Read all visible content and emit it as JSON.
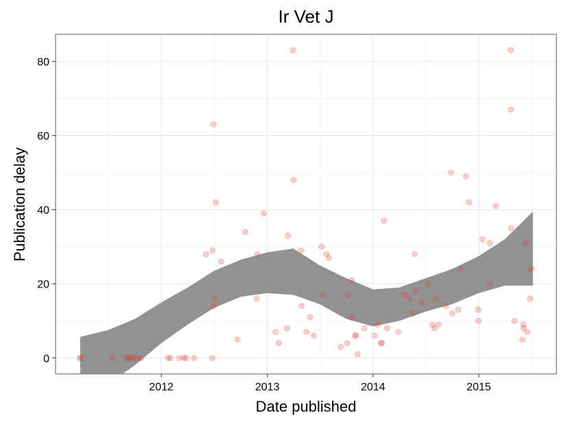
{
  "chart_data": {
    "type": "scatter",
    "title": "Ir Vet J",
    "xlabel": "Date published",
    "ylabel": "Publication delay",
    "x_scale": "date",
    "xlim": [
      "2011-01-01",
      "2015-09-26"
    ],
    "ylim": [
      -4.3,
      87.3
    ],
    "x_ticks": [
      {
        "value": "2012-01-01",
        "label": "2012"
      },
      {
        "value": "2013-01-01",
        "label": "2013"
      },
      {
        "value": "2014-01-01",
        "label": "2014"
      },
      {
        "value": "2015-01-01",
        "label": "2015"
      }
    ],
    "y_ticks": [
      0,
      20,
      40,
      60,
      80
    ],
    "grid": true,
    "point_color": "#e8382d",
    "band_color": "#8c8c8c",
    "series": [
      {
        "points": [
          {
            "x": "2011-03-27",
            "y": 0
          },
          {
            "x": "2011-03-29",
            "y": 0
          },
          {
            "x": "2011-07-17",
            "y": 0
          },
          {
            "x": "2011-09-05",
            "y": 0
          },
          {
            "x": "2011-09-10",
            "y": 0
          },
          {
            "x": "2011-09-17",
            "y": 0
          },
          {
            "x": "2011-09-26",
            "y": 0
          },
          {
            "x": "2011-10-10",
            "y": 0
          },
          {
            "x": "2011-10-23",
            "y": 0
          },
          {
            "x": "2012-01-24",
            "y": 0
          },
          {
            "x": "2012-02-01",
            "y": 0
          },
          {
            "x": "2012-03-03",
            "y": 0
          },
          {
            "x": "2012-03-19",
            "y": 0
          },
          {
            "x": "2012-03-26",
            "y": 0
          },
          {
            "x": "2012-04-23",
            "y": 0
          },
          {
            "x": "2012-06-03",
            "y": 28
          },
          {
            "x": "2012-06-25",
            "y": 0
          },
          {
            "x": "2012-06-26",
            "y": 29
          },
          {
            "x": "2012-06-29",
            "y": 63
          },
          {
            "x": "2012-06-30",
            "y": 14
          },
          {
            "x": "2012-07-05",
            "y": 16
          },
          {
            "x": "2012-07-07",
            "y": 42
          },
          {
            "x": "2012-07-25",
            "y": 26
          },
          {
            "x": "2012-09-20",
            "y": 5
          },
          {
            "x": "2012-10-17",
            "y": 34
          },
          {
            "x": "2012-11-25",
            "y": 16
          },
          {
            "x": "2012-11-28",
            "y": 28
          },
          {
            "x": "2012-12-20",
            "y": 39
          },
          {
            "x": "2013-01-30",
            "y": 7
          },
          {
            "x": "2013-02-10",
            "y": 4
          },
          {
            "x": "2013-03-10",
            "y": 8
          },
          {
            "x": "2013-03-13",
            "y": 33
          },
          {
            "x": "2013-03-31",
            "y": 83
          },
          {
            "x": "2013-04-02",
            "y": 48
          },
          {
            "x": "2013-04-28",
            "y": 29
          },
          {
            "x": "2013-04-30",
            "y": 14
          },
          {
            "x": "2013-05-16",
            "y": 7
          },
          {
            "x": "2013-05-29",
            "y": 11
          },
          {
            "x": "2013-06-10",
            "y": 6
          },
          {
            "x": "2013-07-07",
            "y": 30
          },
          {
            "x": "2013-07-10",
            "y": 17
          },
          {
            "x": "2013-07-24",
            "y": 28
          },
          {
            "x": "2013-08-02",
            "y": 27
          },
          {
            "x": "2013-09-11",
            "y": 3
          },
          {
            "x": "2013-10-04",
            "y": 4
          },
          {
            "x": "2013-10-05",
            "y": 17
          },
          {
            "x": "2013-10-19",
            "y": 21
          },
          {
            "x": "2013-10-21",
            "y": 11
          },
          {
            "x": "2013-10-31",
            "y": 6
          },
          {
            "x": "2013-11-03",
            "y": 6
          },
          {
            "x": "2013-11-09",
            "y": 1
          },
          {
            "x": "2013-12-02",
            "y": 8
          },
          {
            "x": "2014-01-06",
            "y": 6
          },
          {
            "x": "2014-01-17",
            "y": 9
          },
          {
            "x": "2014-01-29",
            "y": 4
          },
          {
            "x": "2014-01-31",
            "y": 4
          },
          {
            "x": "2014-02-07",
            "y": 37
          },
          {
            "x": "2014-02-19",
            "y": 8
          },
          {
            "x": "2014-03-29",
            "y": 7
          },
          {
            "x": "2014-04-20",
            "y": 17
          },
          {
            "x": "2014-05-07",
            "y": 16
          },
          {
            "x": "2014-05-18",
            "y": 12
          },
          {
            "x": "2014-05-25",
            "y": 28
          },
          {
            "x": "2014-05-28",
            "y": 18
          },
          {
            "x": "2014-06-18",
            "y": 15
          },
          {
            "x": "2014-07-10",
            "y": 20
          },
          {
            "x": "2014-07-25",
            "y": 9
          },
          {
            "x": "2014-08-01",
            "y": 8
          },
          {
            "x": "2014-08-06",
            "y": 16
          },
          {
            "x": "2014-08-15",
            "y": 9
          },
          {
            "x": "2014-09-10",
            "y": 14
          },
          {
            "x": "2014-09-27",
            "y": 50
          },
          {
            "x": "2014-10-02",
            "y": 12
          },
          {
            "x": "2014-10-22",
            "y": 13
          },
          {
            "x": "2014-10-30",
            "y": 24
          },
          {
            "x": "2014-11-18",
            "y": 49
          },
          {
            "x": "2014-11-29",
            "y": 42
          },
          {
            "x": "2014-12-30",
            "y": 13
          },
          {
            "x": "2014-12-31",
            "y": 10
          },
          {
            "x": "2015-01-14",
            "y": 32
          },
          {
            "x": "2015-02-08",
            "y": 31
          },
          {
            "x": "2015-02-09",
            "y": 20
          },
          {
            "x": "2015-03-01",
            "y": 41
          },
          {
            "x": "2015-04-21",
            "y": 83
          },
          {
            "x": "2015-04-22",
            "y": 67
          },
          {
            "x": "2015-04-23",
            "y": 35
          },
          {
            "x": "2015-05-04",
            "y": 10
          },
          {
            "x": "2015-06-01",
            "y": 5
          },
          {
            "x": "2015-06-04",
            "y": 9
          },
          {
            "x": "2015-06-05",
            "y": 8
          },
          {
            "x": "2015-06-13",
            "y": 31
          },
          {
            "x": "2015-06-17",
            "y": 7
          },
          {
            "x": "2015-06-27",
            "y": 16
          },
          {
            "x": "2015-07-02",
            "y": 24
          }
        ]
      }
    ],
    "smooth_band": [
      {
        "x": "2011-03-27",
        "lower": -16,
        "upper": 5.7
      },
      {
        "x": "2011-07-01",
        "lower": -7,
        "upper": 7.5
      },
      {
        "x": "2011-10-01",
        "lower": -2,
        "upper": 10.5
      },
      {
        "x": "2012-01-01",
        "lower": 4,
        "upper": 15
      },
      {
        "x": "2012-04-01",
        "lower": 9,
        "upper": 19
      },
      {
        "x": "2012-07-01",
        "lower": 13.5,
        "upper": 23.5
      },
      {
        "x": "2012-10-01",
        "lower": 16.5,
        "upper": 26.5
      },
      {
        "x": "2013-01-01",
        "lower": 17.5,
        "upper": 28.5
      },
      {
        "x": "2013-04-01",
        "lower": 17,
        "upper": 29.5
      },
      {
        "x": "2013-07-01",
        "lower": 14.5,
        "upper": 25
      },
      {
        "x": "2013-10-01",
        "lower": 10.5,
        "upper": 21.5
      },
      {
        "x": "2014-01-01",
        "lower": 8.5,
        "upper": 18.5
      },
      {
        "x": "2014-04-01",
        "lower": 10,
        "upper": 19
      },
      {
        "x": "2014-07-01",
        "lower": 12.5,
        "upper": 21.5
      },
      {
        "x": "2014-10-01",
        "lower": 14.5,
        "upper": 24
      },
      {
        "x": "2015-01-01",
        "lower": 17.5,
        "upper": 27.5
      },
      {
        "x": "2015-04-01",
        "lower": 19.5,
        "upper": 32
      },
      {
        "x": "2015-07-07",
        "lower": 19.5,
        "upper": 39.5
      }
    ]
  }
}
